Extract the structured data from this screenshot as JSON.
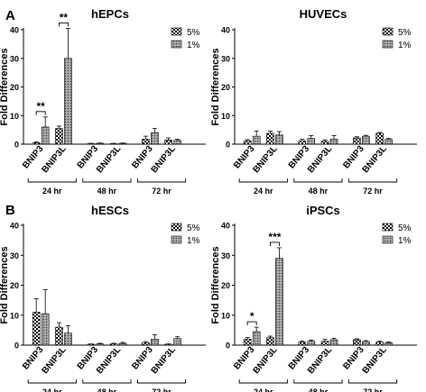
{
  "panel_letters": [
    "A",
    "B"
  ],
  "legend_labels": [
    "5%",
    "1%"
  ],
  "ylabel": "Fold  Differences",
  "category_labels": [
    "BNIP3",
    "BNIP3L",
    "BNIP3",
    "BNIP3L",
    "BNIP3",
    "BNIP3L"
  ],
  "time_groups": [
    "24 hr",
    "48 hr",
    "72 hr"
  ],
  "colors": {
    "bar_5": "checkered-black-white",
    "bar_1": "dotted-gray"
  },
  "chart_data": [
    {
      "type": "bar",
      "title": "hEPCs",
      "panel": "A",
      "ylim": [
        0,
        40
      ],
      "yticks": [
        0,
        10,
        20,
        30,
        40
      ],
      "xlabel": "",
      "ylabel": "Fold  Differences",
      "categories": [
        "BNIP3 24 hr",
        "BNIP3L 24 hr",
        "BNIP3 48 hr",
        "BNIP3L 48 hr",
        "BNIP3 72 hr",
        "BNIP3L 72 hr"
      ],
      "series": [
        {
          "name": "5%",
          "values": [
            0.5,
            5.5,
            0.2,
            0.2,
            1.8,
            1.5
          ],
          "errors": [
            0.3,
            0.8,
            0.1,
            0.1,
            1.0,
            0.7
          ]
        },
        {
          "name": "1%",
          "values": [
            6.0,
            30.0,
            0.3,
            0.3,
            4.0,
            1.3
          ],
          "errors": [
            3.5,
            10.5,
            0.1,
            0.1,
            1.5,
            0.4
          ]
        }
      ],
      "significance": [
        {
          "category": 0,
          "label": "**"
        },
        {
          "category": 1,
          "label": "**"
        }
      ],
      "legend_position": "top-right",
      "grid": false
    },
    {
      "type": "bar",
      "title": "HUVECs",
      "ylim": [
        0,
        40
      ],
      "yticks": [
        0,
        10,
        20,
        30,
        40
      ],
      "xlabel": "",
      "ylabel": "Fold  Differences",
      "categories": [
        "BNIP3 24 hr",
        "BNIP3L 24 hr",
        "BNIP3 48 hr",
        "BNIP3L 48 hr",
        "BNIP3 72 hr",
        "BNIP3L 72 hr"
      ],
      "series": [
        {
          "name": "5%",
          "values": [
            1.2,
            3.8,
            1.2,
            1.0,
            2.2,
            3.8
          ],
          "errors": [
            0.4,
            0.8,
            0.5,
            0.5,
            0.4,
            0.3
          ]
        },
        {
          "name": "1%",
          "values": [
            2.8,
            3.2,
            2.0,
            1.8,
            2.8,
            1.7
          ],
          "errors": [
            1.8,
            1.2,
            1.0,
            1.2,
            0.3,
            0.3
          ]
        }
      ],
      "significance": [],
      "legend_position": "top-right",
      "grid": false
    },
    {
      "type": "bar",
      "title": "hESCs",
      "panel": "B",
      "ylim": [
        0,
        40
      ],
      "yticks": [
        0,
        10,
        20,
        30,
        40
      ],
      "xlabel": "",
      "ylabel": "Fold  Differences",
      "categories": [
        "BNIP3 24 hr",
        "BNIP3L 24 hr",
        "BNIP3 48 hr",
        "BNIP3L 48 hr",
        "BNIP3 72 hr",
        "BNIP3L 72 hr"
      ],
      "series": [
        {
          "name": "5%",
          "values": [
            11.0,
            6.0,
            0.3,
            0.4,
            0.8,
            0.3
          ],
          "errors": [
            4.5,
            1.5,
            0.1,
            0.2,
            0.4,
            0.1
          ]
        },
        {
          "name": "1%",
          "values": [
            10.5,
            4.0,
            0.4,
            0.6,
            2.0,
            2.2
          ],
          "errors": [
            8.0,
            2.5,
            0.2,
            0.3,
            1.5,
            0.6
          ]
        }
      ],
      "significance": [],
      "legend_position": "top-right",
      "grid": false
    },
    {
      "type": "bar",
      "title": "iPSCs",
      "ylim": [
        0,
        40
      ],
      "yticks": [
        0,
        10,
        20,
        30,
        40
      ],
      "xlabel": "",
      "ylabel": "Fold  Differences",
      "categories": [
        "BNIP3 24 hr",
        "BNIP3L 24 hr",
        "BNIP3 48 hr",
        "BNIP3L 48 hr",
        "BNIP3 72 hr",
        "BNIP3L 72 hr"
      ],
      "series": [
        {
          "name": "5%",
          "values": [
            2.0,
            2.5,
            1.0,
            1.3,
            1.8,
            1.0
          ],
          "errors": [
            0.5,
            0.5,
            0.4,
            0.6,
            0.3,
            0.3
          ]
        },
        {
          "name": "1%",
          "values": [
            4.5,
            29.0,
            1.3,
            1.8,
            1.2,
            0.8
          ],
          "errors": [
            1.5,
            3.5,
            0.4,
            0.5,
            0.3,
            0.3
          ]
        }
      ],
      "significance": [
        {
          "category": 0,
          "label": "*"
        },
        {
          "category": 1,
          "label": "***"
        }
      ],
      "legend_position": "top-right",
      "grid": false
    }
  ]
}
